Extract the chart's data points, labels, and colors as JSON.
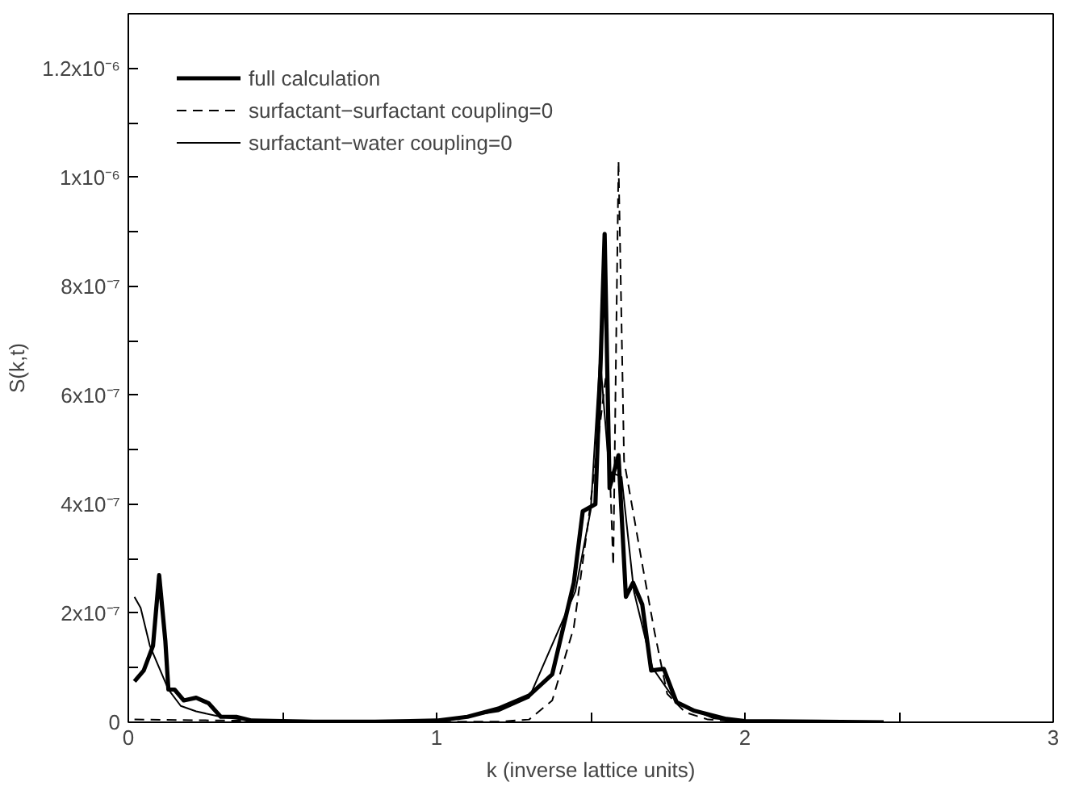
{
  "chart_data": {
    "type": "line",
    "xlabel": "k (inverse lattice units)",
    "ylabel": "S(k,t)",
    "xlim": [
      0,
      3
    ],
    "ylim": [
      0,
      1.3e-06
    ],
    "xticks": [
      0,
      {
        "value": 0.5,
        "label": null
      },
      1,
      {
        "value": 1.5,
        "label": null
      },
      2,
      {
        "value": 2.5,
        "label": null
      },
      3
    ],
    "yticks": [
      0,
      {
        "value": 1e-07,
        "label": null
      },
      {
        "value": 2e-07,
        "label": "2x10⁻⁷"
      },
      {
        "value": 3e-07,
        "label": null
      },
      {
        "value": 4e-07,
        "label": "4x10⁻⁷"
      },
      {
        "value": 5e-07,
        "label": null
      },
      {
        "value": 6e-07,
        "label": "6x10⁻⁷"
      },
      {
        "value": 7e-07,
        "label": null
      },
      {
        "value": 8e-07,
        "label": "8x10⁻⁷"
      },
      {
        "value": 9e-07,
        "label": null
      },
      {
        "value": 1e-06,
        "label": "1x10⁻⁶"
      },
      {
        "value": 1.1e-06,
        "label": null
      },
      {
        "value": 1.2e-06,
        "label": "1.2x10⁻⁶"
      }
    ],
    "legend": "top left",
    "grid": false,
    "series": [
      {
        "name": "full calculation",
        "color": "#000000",
        "line_style": "solid",
        "x": [
          0.02,
          0.05,
          0.08,
          0.1,
          0.12,
          0.13,
          0.15,
          0.18,
          0.22,
          0.26,
          0.3,
          0.35,
          0.4,
          0.6,
          0.8,
          1.0,
          1.1,
          1.2,
          1.3,
          1.375,
          1.445,
          1.474,
          1.515,
          1.532,
          1.545,
          1.561,
          1.59,
          1.614,
          1.637,
          1.667,
          1.696,
          1.737,
          1.778,
          1.836,
          1.94,
          2.0,
          2.45
        ],
        "values": [
          7.5e-08,
          9.5e-08,
          1.4e-07,
          2.7e-07,
          1.5e-07,
          6e-08,
          6e-08,
          4e-08,
          4.5e-08,
          3.5e-08,
          1e-08,
          1e-08,
          3e-09,
          1e-09,
          1e-09,
          3e-09,
          1e-08,
          2.5e-08,
          4.9e-08,
          8.8e-08,
          2.56e-07,
          3.87e-07,
          4e-07,
          6.6e-07,
          8.96e-07,
          4.3e-07,
          4.9e-07,
          2.3e-07,
          2.56e-07,
          2.16e-07,
          9.5e-08,
          9.8e-08,
          3.7e-08,
          2.1e-08,
          6e-09,
          2e-09,
          0
        ]
      },
      {
        "name": "surfactant−surfactant coupling=0",
        "color": "#000000",
        "line_style": "dashed",
        "x": [
          0.02,
          0.5,
          1.0,
          1.2,
          1.3,
          1.375,
          1.445,
          1.49,
          1.55,
          1.573,
          1.59,
          1.608,
          1.637,
          1.667,
          1.707,
          1.748,
          1.807,
          1.88,
          2.0,
          2.45
        ],
        "values": [
          5e-09,
          2e-09,
          1e-09,
          1e-09,
          5e-09,
          4e-08,
          1.74e-07,
          3.6e-07,
          6.4e-07,
          2.87e-07,
          1.03e-06,
          4.8e-07,
          3.87e-07,
          2.9e-07,
          1.65e-07,
          5.2e-08,
          1.8e-08,
          5e-09,
          1e-09,
          0
        ]
      },
      {
        "name": "surfactant−water coupling=0",
        "color": "#000000",
        "line_style": "solid",
        "x": [
          0.02,
          0.04,
          0.07,
          0.1,
          0.13,
          0.17,
          0.22,
          0.3,
          0.4,
          0.6,
          1.0,
          1.2,
          1.3,
          1.45,
          1.5,
          1.53,
          1.56,
          1.6,
          1.64,
          1.7,
          1.78,
          1.9,
          2.0
        ],
        "values": [
          2.3e-07,
          2.1e-07,
          1.4e-07,
          1e-07,
          6e-08,
          3e-08,
          2e-08,
          1e-08,
          3e-09,
          1e-09,
          3e-09,
          2e-08,
          4.5e-08,
          2.4e-07,
          3.9e-07,
          6.7e-07,
          4.6e-07,
          4.5e-07,
          2.4e-07,
          1e-07,
          3.5e-08,
          7e-09,
          1e-09
        ]
      }
    ]
  }
}
